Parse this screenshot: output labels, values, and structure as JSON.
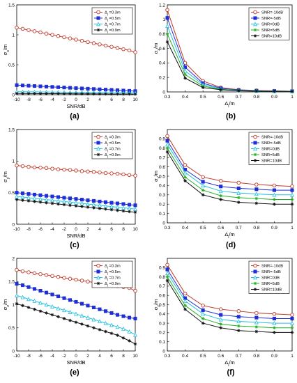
{
  "figure": {
    "panel_labels": [
      "(a)",
      "(b)",
      "(c)",
      "(d)",
      "(e)",
      "(f)"
    ]
  },
  "colors": {
    "red": "#c0392b",
    "blue": "#1f2fd6",
    "cyan": "#22bfe0",
    "black": "#111111",
    "green": "#22b022",
    "marker_fill": "#ffffff"
  },
  "chart_data": [
    {
      "panel": "(a)",
      "type": "line",
      "xlabel": "SNR/dB",
      "ylabel": "σ_x/m",
      "xlim": [
        -10,
        10
      ],
      "ylim": [
        0,
        1.5
      ],
      "xticks": [
        "-10",
        "-8",
        "-6",
        "-4",
        "-2",
        "0",
        "2",
        "4",
        "6",
        "8",
        "10"
      ],
      "yticks": [
        "0",
        "0.5",
        "1",
        "1.5"
      ],
      "x": [
        -10,
        -9,
        -8,
        -7,
        -6,
        -5,
        -4,
        -3,
        -2,
        -1,
        0,
        1,
        2,
        3,
        4,
        5,
        6,
        7,
        8,
        9,
        10
      ],
      "legend_position": "top-right",
      "series": [
        {
          "name": "Δ_l =0.3m",
          "marker": "circle",
          "color": "red",
          "values": [
            1.12,
            1.1,
            1.08,
            1.06,
            1.04,
            1.02,
            1.0,
            0.98,
            0.96,
            0.94,
            0.92,
            0.9,
            0.88,
            0.86,
            0.84,
            0.82,
            0.8,
            0.78,
            0.76,
            0.74,
            0.71
          ]
        },
        {
          "name": "Δ_l =0.5m",
          "marker": "square",
          "color": "blue",
          "values": [
            0.16,
            0.155,
            0.15,
            0.145,
            0.14,
            0.135,
            0.13,
            0.125,
            0.12,
            0.115,
            0.11,
            0.105,
            0.1,
            0.095,
            0.09,
            0.085,
            0.08,
            0.075,
            0.07,
            0.065,
            0.06
          ]
        },
        {
          "name": "Δ_l =0.7m",
          "marker": "triangle",
          "color": "cyan",
          "values": [
            0.05,
            0.049,
            0.048,
            0.047,
            0.046,
            0.045,
            0.044,
            0.043,
            0.042,
            0.041,
            0.04,
            0.039,
            0.038,
            0.037,
            0.036,
            0.035,
            0.034,
            0.033,
            0.032,
            0.031,
            0.03
          ]
        },
        {
          "name": "Δ_l =0.9m",
          "marker": "star",
          "color": "black",
          "values": [
            0.02,
            0.02,
            0.019,
            0.019,
            0.018,
            0.018,
            0.017,
            0.017,
            0.016,
            0.016,
            0.015,
            0.015,
            0.014,
            0.014,
            0.013,
            0.013,
            0.012,
            0.012,
            0.011,
            0.011,
            0.01
          ]
        }
      ]
    },
    {
      "panel": "(b)",
      "type": "line",
      "xlabel": "Δ_l/m",
      "ylabel": "σ_x/m",
      "xlim": [
        0.3,
        1
      ],
      "ylim": [
        0,
        1.2
      ],
      "xticks": [
        "0.3",
        "0.4",
        "0.5",
        "0.6",
        "0.7",
        "0.8",
        "0.9",
        "1"
      ],
      "yticks": [
        "0",
        "0.2",
        "0.4",
        "0.6",
        "0.8",
        "1",
        "1.2"
      ],
      "x": [
        0.3,
        0.4,
        0.5,
        0.6,
        0.7,
        0.8,
        0.9,
        1.0
      ],
      "legend_position": "top-right",
      "series": [
        {
          "name": "SNR=-10dB",
          "marker": "circle",
          "color": "red",
          "values": [
            1.13,
            0.4,
            0.15,
            0.06,
            0.03,
            0.02,
            0.015,
            0.01
          ]
        },
        {
          "name": "SNR=-5dB",
          "marker": "square",
          "color": "blue",
          "values": [
            1.02,
            0.34,
            0.12,
            0.05,
            0.025,
            0.017,
            0.012,
            0.01
          ]
        },
        {
          "name": "SNR=0dB",
          "marker": "triangle",
          "color": "cyan",
          "values": [
            0.91,
            0.29,
            0.1,
            0.04,
            0.02,
            0.015,
            0.01,
            0.008
          ]
        },
        {
          "name": "SNR=5dB",
          "marker": "star",
          "color": "green",
          "values": [
            0.8,
            0.24,
            0.08,
            0.035,
            0.018,
            0.012,
            0.009,
            0.007
          ]
        },
        {
          "name": "SNR=10dB",
          "marker": "star",
          "color": "black",
          "values": [
            0.69,
            0.19,
            0.06,
            0.03,
            0.015,
            0.01,
            0.008,
            0.006
          ]
        }
      ]
    },
    {
      "panel": "(c)",
      "type": "line",
      "xlabel": "SNR/dB",
      "ylabel": "σ_y/m",
      "xlim": [
        -10,
        10
      ],
      "ylim": [
        0,
        1.5
      ],
      "xticks": [
        "-10",
        "-8",
        "-6",
        "-4",
        "-2",
        "0",
        "2",
        "4",
        "6",
        "8",
        "10"
      ],
      "yticks": [
        "0",
        "0.5",
        "1",
        "1.5"
      ],
      "x": [
        -10,
        -9,
        -8,
        -7,
        -6,
        -5,
        -4,
        -3,
        -2,
        -1,
        0,
        1,
        2,
        3,
        4,
        5,
        6,
        7,
        8,
        9,
        10
      ],
      "legend_position": "top-right",
      "series": [
        {
          "name": "Δ_l =0.3m",
          "marker": "circle",
          "color": "red",
          "values": [
            0.93,
            0.92,
            0.91,
            0.9,
            0.895,
            0.89,
            0.88,
            0.87,
            0.865,
            0.86,
            0.85,
            0.84,
            0.835,
            0.83,
            0.82,
            0.81,
            0.805,
            0.8,
            0.79,
            0.78,
            0.77
          ]
        },
        {
          "name": "Δ_l =0.5m",
          "marker": "square",
          "color": "blue",
          "values": [
            0.5,
            0.49,
            0.48,
            0.47,
            0.46,
            0.45,
            0.44,
            0.43,
            0.42,
            0.41,
            0.4,
            0.39,
            0.38,
            0.37,
            0.36,
            0.35,
            0.34,
            0.33,
            0.32,
            0.31,
            0.3
          ]
        },
        {
          "name": "Δ_l =0.7m",
          "marker": "triangle",
          "color": "cyan",
          "values": [
            0.44,
            0.43,
            0.42,
            0.41,
            0.4,
            0.39,
            0.38,
            0.37,
            0.36,
            0.35,
            0.34,
            0.33,
            0.32,
            0.31,
            0.3,
            0.29,
            0.28,
            0.27,
            0.26,
            0.25,
            0.24
          ]
        },
        {
          "name": "Δ_l =0.9m",
          "marker": "star",
          "color": "black",
          "values": [
            0.39,
            0.38,
            0.37,
            0.36,
            0.35,
            0.34,
            0.33,
            0.32,
            0.31,
            0.3,
            0.29,
            0.28,
            0.27,
            0.26,
            0.25,
            0.24,
            0.23,
            0.22,
            0.21,
            0.2,
            0.19
          ]
        }
      ]
    },
    {
      "panel": "(d)",
      "type": "line",
      "xlabel": "Δ_l/m",
      "ylabel": "σ_y/m",
      "xlim": [
        0.3,
        1
      ],
      "ylim": [
        0,
        1
      ],
      "xticks": [
        "0.3",
        "0.4",
        "0.5",
        "0.6",
        "0.7",
        "0.8",
        "0.9",
        "1"
      ],
      "yticks": [
        "0",
        "0.1",
        "0.2",
        "0.3",
        "0.4",
        "0.5",
        "0.6",
        "0.7",
        "0.8",
        "0.9"
      ],
      "x": [
        0.3,
        0.4,
        0.5,
        0.6,
        0.7,
        0.8,
        0.9,
        1.0
      ],
      "legend_position": "top-right",
      "series": [
        {
          "name": "SNR=-10dB",
          "marker": "circle",
          "color": "red",
          "values": [
            0.93,
            0.62,
            0.49,
            0.45,
            0.43,
            0.41,
            0.4,
            0.39
          ]
        },
        {
          "name": "SNR=-5dB",
          "marker": "square",
          "color": "blue",
          "values": [
            0.88,
            0.57,
            0.44,
            0.39,
            0.37,
            0.36,
            0.35,
            0.35
          ]
        },
        {
          "name": "SNR=0dB",
          "marker": "triangle",
          "color": "cyan",
          "values": [
            0.84,
            0.54,
            0.4,
            0.34,
            0.32,
            0.31,
            0.3,
            0.3
          ]
        },
        {
          "name": "SNR=5dB",
          "marker": "star",
          "color": "green",
          "values": [
            0.8,
            0.49,
            0.35,
            0.29,
            0.27,
            0.26,
            0.25,
            0.25
          ]
        },
        {
          "name": "SNR=10dB",
          "marker": "star",
          "color": "black",
          "values": [
            0.76,
            0.45,
            0.3,
            0.25,
            0.22,
            0.21,
            0.2,
            0.2
          ]
        }
      ]
    },
    {
      "panel": "(e)",
      "type": "line",
      "xlabel": "SNR/dB",
      "ylabel": "σ_z/m",
      "xlim": [
        -10,
        10
      ],
      "ylim": [
        0,
        2
      ],
      "xticks": [
        "-10",
        "-8",
        "-6",
        "-4",
        "-2",
        "0",
        "2",
        "4",
        "6",
        "8",
        "10"
      ],
      "yticks": [
        "0",
        "0.5",
        "1",
        "1.5",
        "2"
      ],
      "x": [
        -10,
        -9,
        -8,
        -7,
        -6,
        -5,
        -4,
        -3,
        -2,
        -1,
        0,
        1,
        2,
        3,
        4,
        5,
        6,
        7,
        8,
        9,
        10
      ],
      "legend_position": "top-right",
      "series": [
        {
          "name": "Δ_l =0.3m",
          "marker": "circle",
          "color": "red",
          "values": [
            1.75,
            1.72,
            1.7,
            1.68,
            1.66,
            1.64,
            1.62,
            1.6,
            1.58,
            1.56,
            1.54,
            1.52,
            1.5,
            1.48,
            1.46,
            1.44,
            1.42,
            1.4,
            1.38,
            1.36,
            1.3
          ]
        },
        {
          "name": "Δ_l =0.5m",
          "marker": "square",
          "color": "blue",
          "values": [
            1.45,
            1.42,
            1.38,
            1.34,
            1.3,
            1.26,
            1.22,
            1.18,
            1.14,
            1.1,
            1.06,
            1.02,
            0.98,
            0.94,
            0.9,
            0.86,
            0.82,
            0.78,
            0.75,
            0.72,
            0.7
          ]
        },
        {
          "name": "Δ_l =0.7m",
          "marker": "triangle",
          "color": "cyan",
          "values": [
            1.2,
            1.16,
            1.12,
            1.08,
            1.04,
            1.0,
            0.96,
            0.92,
            0.88,
            0.84,
            0.8,
            0.76,
            0.72,
            0.68,
            0.64,
            0.6,
            0.56,
            0.52,
            0.48,
            0.42,
            0.35
          ]
        },
        {
          "name": "Δ_l =0.9m",
          "marker": "star",
          "color": "black",
          "values": [
            1.02,
            0.98,
            0.94,
            0.9,
            0.86,
            0.82,
            0.78,
            0.74,
            0.7,
            0.66,
            0.62,
            0.58,
            0.54,
            0.5,
            0.46,
            0.42,
            0.38,
            0.34,
            0.28,
            0.22,
            0.15
          ]
        }
      ]
    },
    {
      "panel": "(f)",
      "type": "line",
      "xlabel": "Δ_l/m",
      "ylabel": "σ_z/m",
      "xlim": [
        0.3,
        1
      ],
      "ylim": [
        0,
        1
      ],
      "xticks": [
        "0.3",
        "0.4",
        "0.5",
        "0.6",
        "0.7",
        "0.8",
        "0.9",
        "1"
      ],
      "yticks": [
        "0",
        "0.1",
        "0.2",
        "0.3",
        "0.4",
        "0.5",
        "0.6",
        "0.7",
        "0.8",
        "0.9"
      ],
      "x": [
        0.3,
        0.4,
        0.5,
        0.6,
        0.7,
        0.8,
        0.9,
        1.0
      ],
      "legend_position": "top-right",
      "series": [
        {
          "name": "SNR=-10dB",
          "marker": "circle",
          "color": "red",
          "values": [
            0.93,
            0.62,
            0.49,
            0.45,
            0.43,
            0.41,
            0.4,
            0.39
          ]
        },
        {
          "name": "SNR=-5dB",
          "marker": "square",
          "color": "blue",
          "values": [
            0.88,
            0.57,
            0.44,
            0.39,
            0.37,
            0.36,
            0.35,
            0.35
          ]
        },
        {
          "name": "SNR=0dB",
          "marker": "triangle",
          "color": "cyan",
          "values": [
            0.84,
            0.54,
            0.4,
            0.34,
            0.32,
            0.31,
            0.3,
            0.3
          ]
        },
        {
          "name": "SNR=5dB",
          "marker": "star",
          "color": "green",
          "values": [
            0.8,
            0.49,
            0.35,
            0.29,
            0.27,
            0.26,
            0.25,
            0.25
          ]
        },
        {
          "name": "SNR=10dB",
          "marker": "star",
          "color": "black",
          "values": [
            0.76,
            0.45,
            0.3,
            0.25,
            0.22,
            0.21,
            0.2,
            0.2
          ]
        }
      ]
    }
  ]
}
